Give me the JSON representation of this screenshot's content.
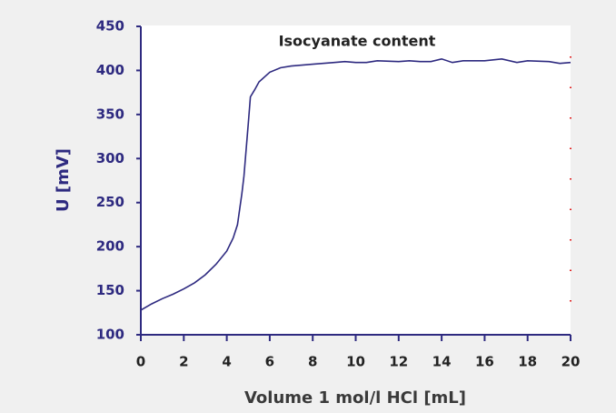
{
  "chart_data": {
    "type": "line",
    "title": "Isocyanate content",
    "xlabel": "Volume 1 mol/l HCl [mL]",
    "ylabel": "U [mV]",
    "series": [
      {
        "name": "U",
        "color": "#2e2a80",
        "x": [
          0,
          0.5,
          1,
          1.5,
          2,
          2.5,
          3,
          3.5,
          4,
          4.3,
          4.5,
          4.7,
          4.8,
          5,
          5.1,
          5.3,
          5.5,
          6,
          6.5,
          7,
          8,
          9,
          9.5,
          10,
          10.5,
          11,
          12,
          12.5,
          13,
          13.5,
          14,
          14.5,
          15,
          16,
          16.8,
          17.5,
          18,
          19,
          19.5,
          20
        ],
        "values": [
          128,
          135,
          141,
          146,
          152,
          159,
          168,
          180,
          195,
          210,
          225,
          260,
          280,
          340,
          370,
          378,
          387,
          398,
          403,
          405,
          407,
          409,
          410,
          409,
          409,
          411,
          410,
          411,
          410,
          410,
          413,
          409,
          411,
          411,
          413,
          409,
          411,
          410,
          408,
          409
        ]
      }
    ],
    "xlim": [
      0,
      20
    ],
    "xticks": [
      0,
      2,
      4,
      6,
      8,
      10,
      12,
      14,
      16,
      18,
      20
    ],
    "ylim": [
      100,
      450
    ],
    "yticks": [
      100,
      150,
      200,
      250,
      300,
      350,
      400,
      450
    ]
  }
}
